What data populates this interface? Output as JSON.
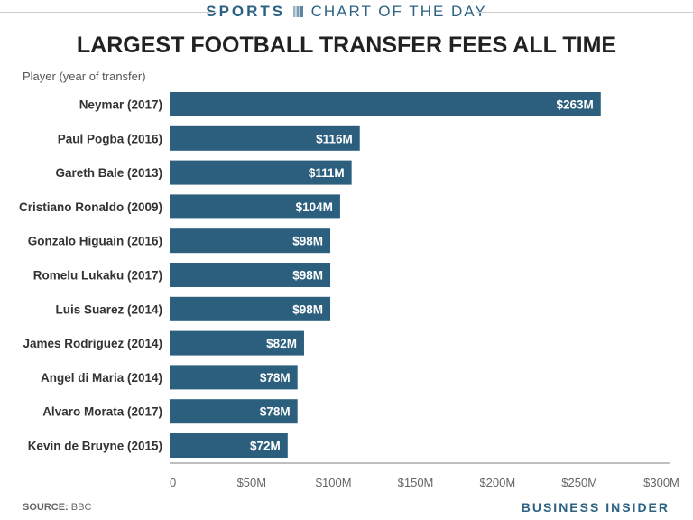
{
  "header": {
    "section": "SPORTS",
    "subtitle": "CHART OF THE DAY"
  },
  "footer": {
    "source_label": "SOURCE:",
    "source": "BBC",
    "brand": "BUSINESS INSIDER"
  },
  "colors": {
    "bar": "#2b5f7d",
    "accent": "#2b6282"
  },
  "chart_data": {
    "type": "bar",
    "orientation": "horizontal",
    "title": "LARGEST FOOTBALL TRANSFER FEES ALL TIME",
    "ylabel": "Player (year of transfer)",
    "xlabel": "",
    "xlim": [
      0,
      300
    ],
    "grid": false,
    "categories": [
      "Neymar (2017)",
      "Paul Pogba (2016)",
      "Gareth Bale (2013)",
      "Cristiano Ronaldo (2009)",
      "Gonzalo Higuain (2016)",
      "Romelu Lukaku (2017)",
      "Luis Suarez (2014)",
      "James Rodriguez (2014)",
      "Angel di Maria (2014)",
      "Alvaro Morata (2017)",
      "Kevin de Bruyne (2015)"
    ],
    "values": [
      263,
      116,
      111,
      104,
      98,
      98,
      98,
      82,
      78,
      78,
      72
    ],
    "data_labels": [
      "$263M",
      "$116M",
      "$111M",
      "$104M",
      "$98M",
      "$98M",
      "$98M",
      "$82M",
      "$78M",
      "$78M",
      "$72M"
    ],
    "xticks": [
      0,
      50,
      100,
      150,
      200,
      250,
      300
    ],
    "xtick_labels": [
      "0",
      "$50M",
      "$100M",
      "$150M",
      "$200M",
      "$250M",
      "$300M"
    ]
  }
}
